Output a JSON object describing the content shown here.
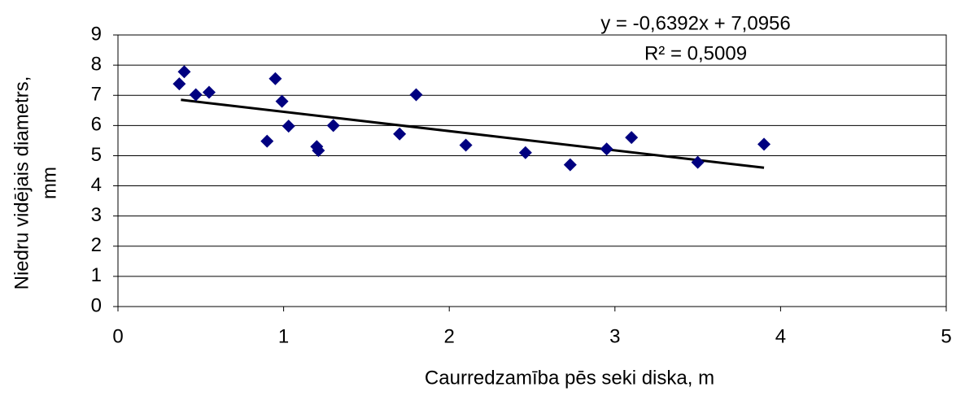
{
  "chart_data": {
    "type": "scatter",
    "xlabel": "Caurredzamība pēs seki diska, m",
    "ylabel": [
      "Niedru vidējais diametrs,",
      "mm"
    ],
    "annotations": [
      "y = -0,6392x + 7,0956",
      "R² = 0,5009"
    ],
    "series": [
      {
        "color": "#000080",
        "x": [
          0.37,
          0.4,
          0.47,
          0.55,
          0.9,
          0.95,
          0.99,
          1.03,
          1.2,
          1.21,
          1.3,
          1.7,
          1.8,
          2.1,
          2.46,
          2.73,
          2.95,
          3.1,
          3.5,
          3.9
        ],
        "values": [
          7.38,
          7.78,
          7.02,
          7.1,
          5.48,
          7.55,
          6.8,
          5.98,
          5.3,
          5.17,
          6.0,
          5.72,
          7.02,
          5.35,
          5.1,
          4.7,
          5.22,
          5.6,
          4.78,
          5.38
        ]
      }
    ],
    "trendline": {
      "color": "#000000",
      "x": [
        0.38,
        3.9
      ],
      "values": [
        6.85,
        4.6
      ]
    },
    "xlim": [
      0,
      5
    ],
    "xticks": [
      0,
      1,
      2,
      3,
      4,
      5
    ],
    "ylim": [
      0,
      9
    ],
    "yticks": [
      0,
      1,
      2,
      3,
      4,
      5,
      6,
      7,
      8,
      9
    ],
    "grid": true
  }
}
